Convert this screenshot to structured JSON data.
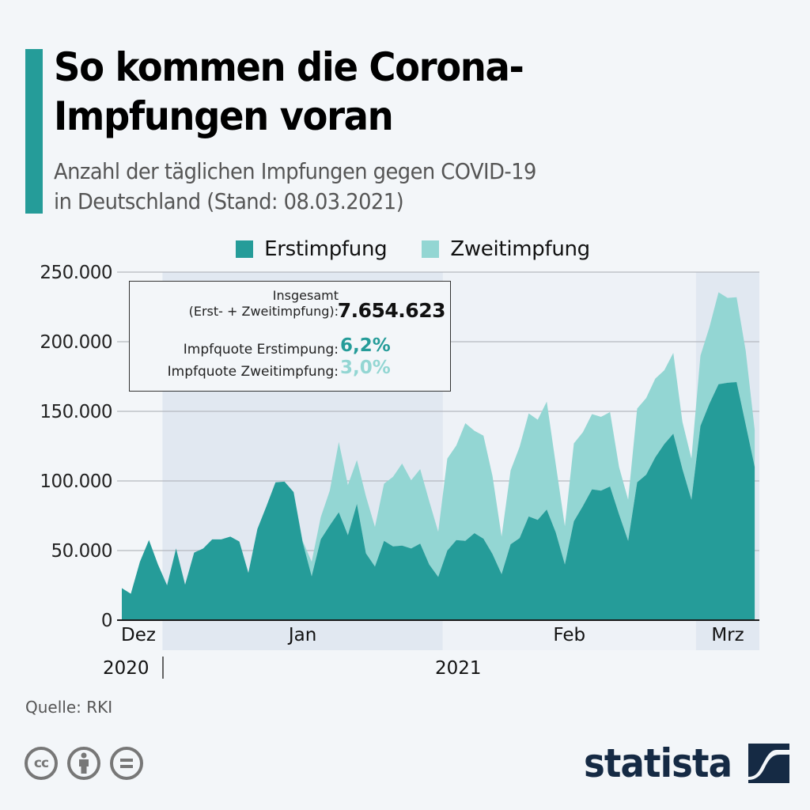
{
  "header": {
    "title": "So kommen die Corona-\nImpfungen voran",
    "title_line1": "So kommen die Corona-",
    "title_line2": "Impfungen voran",
    "subtitle_line1": "Anzahl der täglichen Impfungen gegen COVID-19",
    "subtitle_line2": "in Deutschland (Stand: 08.03.2021)"
  },
  "legend": [
    {
      "label": "Erstimpfung",
      "color": "#259c99"
    },
    {
      "label": "Zweitimpfung",
      "color": "#93d6d3"
    }
  ],
  "infobox": {
    "total_label_line1": "Insgesamt",
    "total_label_line2": "(Erst- + Zweitimpfung):",
    "total_value": "7.654.623",
    "quote1_label": "Impfquote Erstimpung:",
    "quote1_value": "6,2%",
    "quote2_label": "Impfquote Zweitimpfung:",
    "quote2_value": "3,0%"
  },
  "colors": {
    "accent": "#259c99",
    "erst": "#259c99",
    "zweit": "#93d6d3",
    "brand": "#152a44"
  },
  "chart_data": {
    "type": "area",
    "stacked": true,
    "title": "So kommen die Corona-Impfungen voran",
    "subtitle": "Anzahl der täglichen Impfungen gegen COVID-19 in Deutschland (Stand: 08.03.2021)",
    "xlabel": "",
    "ylabel": "",
    "x_start": "2020-12-27",
    "x_end": "2021-03-07",
    "x_unit": "day",
    "ylim": [
      0,
      250000
    ],
    "yticks": [
      0,
      50000,
      100000,
      150000,
      200000,
      250000
    ],
    "ytick_labels": [
      "0",
      "50.000",
      "100.000",
      "150.000",
      "200.000",
      "250.000"
    ],
    "grid": true,
    "legend_position": "top-center",
    "month_labels": [
      {
        "label": "Dez",
        "start_index": 0,
        "end_index": 4,
        "shaded": false
      },
      {
        "label": "Jan",
        "start_index": 5,
        "end_index": 35,
        "shaded": true
      },
      {
        "label": "Feb",
        "start_index": 36,
        "end_index": 63,
        "shaded": false
      },
      {
        "label": "Mrz",
        "start_index": 64,
        "end_index": 70,
        "shaded": true
      }
    ],
    "year_labels": [
      {
        "label": "2020",
        "index": 0
      },
      {
        "label": "2021",
        "index": 36
      }
    ],
    "series": [
      {
        "name": "Erstimpfung",
        "color": "#259c99",
        "values": [
          23000,
          19000,
          42000,
          57500,
          40000,
          25000,
          51500,
          25500,
          48500,
          51500,
          58000,
          58000,
          60000,
          56500,
          34000,
          65500,
          82000,
          99000,
          99500,
          92000,
          56000,
          31500,
          58000,
          68000,
          77500,
          61000,
          83500,
          48000,
          38500,
          57000,
          53000,
          53500,
          51500,
          55000,
          40000,
          31000,
          50000,
          57500,
          57000,
          62500,
          58500,
          47500,
          33000,
          54500,
          59000,
          74500,
          72000,
          79500,
          63000,
          40000,
          71000,
          82000,
          94000,
          93000,
          96000,
          76000,
          57000,
          99000,
          104500,
          117000,
          126500,
          134000,
          108500,
          86500,
          139500,
          155500,
          169500,
          170500,
          171000,
          140500,
          110000
        ]
      },
      {
        "name": "Zweitimpfung",
        "color": "#93d6d3",
        "values": [
          0,
          0,
          0,
          0,
          0,
          0,
          0,
          0,
          0,
          0,
          0,
          0,
          0,
          0,
          0,
          0,
          0,
          0,
          0,
          0,
          1000,
          10500,
          16000,
          25000,
          50500,
          36000,
          31500,
          41000,
          28500,
          41000,
          50000,
          59000,
          49000,
          53500,
          45500,
          32500,
          66000,
          68000,
          84500,
          73500,
          74000,
          56000,
          27000,
          53000,
          65500,
          74000,
          72000,
          77500,
          49000,
          27500,
          56000,
          53000,
          54000,
          53000,
          53500,
          34000,
          29500,
          53000,
          55000,
          56500,
          53000,
          58000,
          34000,
          29500,
          50500,
          55000,
          66000,
          61000,
          61000,
          53000,
          26500
        ]
      }
    ]
  },
  "footer": {
    "source": "Quelle: RKI",
    "license_icons": [
      "cc-icon",
      "attribution-icon",
      "no-derivatives-icon"
    ],
    "cc_text": "cc",
    "brand": "statista"
  }
}
